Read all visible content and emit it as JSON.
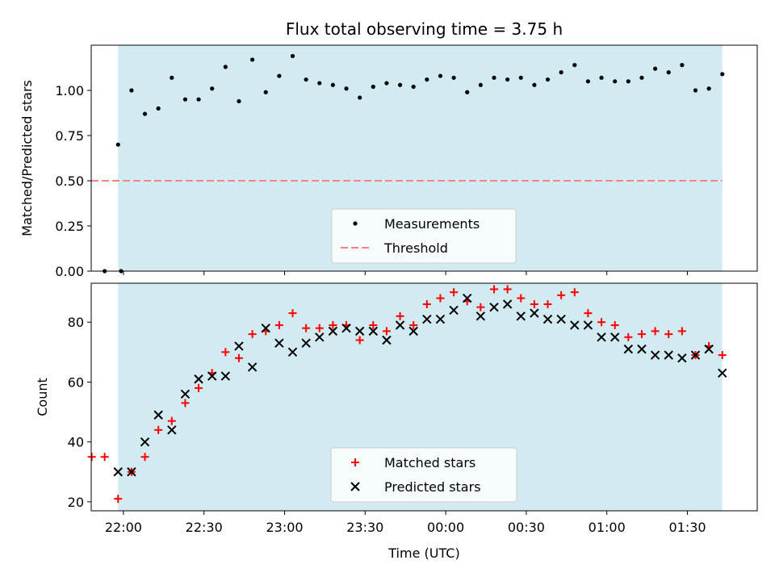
{
  "colors": {
    "band": "#add8e6",
    "threshold": "#ff8080",
    "measurement": "#000000",
    "matched": "#ff0000",
    "predicted": "#000000"
  },
  "chart_data": [
    {
      "type": "scatter",
      "title": "Flux total observing time = 3.75 h",
      "ylabel": "Matched/Predicted stars",
      "xlabel": "",
      "xlim": [
        "21:48",
        "01:56"
      ],
      "ylim": [
        0,
        1.25
      ],
      "yticks": [
        "0.00",
        "0.25",
        "0.50",
        "0.75",
        "1.00"
      ],
      "shaded_interval": [
        "21:58",
        "01:43"
      ],
      "legend": {
        "placement": "lower-center",
        "entries": [
          "Measurements",
          "Threshold"
        ]
      },
      "threshold": {
        "name": "Threshold",
        "y": 0.5,
        "x": [
          "21:48",
          "01:43"
        ]
      },
      "series": [
        {
          "name": "Measurements",
          "x": [
            "21:53",
            "21:58",
            "22:03",
            "22:08",
            "22:13",
            "22:18",
            "22:23",
            "22:28",
            "22:33",
            "22:38",
            "22:43",
            "22:48",
            "22:53",
            "22:58",
            "23:03",
            "23:08",
            "23:13",
            "23:18",
            "23:23",
            "23:28",
            "23:33",
            "23:38",
            "23:43",
            "23:48",
            "23:53",
            "23:58",
            "00:03",
            "00:08",
            "00:13",
            "00:18",
            "00:23",
            "00:28",
            "00:33",
            "00:38",
            "00:43",
            "00:48",
            "00:53",
            "00:58",
            "01:03",
            "01:08",
            "01:13",
            "01:18",
            "01:23",
            "01:28",
            "01:33",
            "01:38",
            "01:43"
          ],
          "y": [
            0.0,
            0.7,
            1.0,
            0.87,
            0.9,
            1.07,
            0.95,
            0.95,
            1.01,
            1.13,
            0.94,
            1.17,
            0.99,
            1.08,
            1.19,
            1.06,
            1.04,
            1.03,
            1.01,
            0.96,
            1.02,
            1.04,
            1.03,
            1.02,
            1.06,
            1.08,
            1.07,
            0.99,
            1.03,
            1.07,
            1.06,
            1.07,
            1.03,
            1.06,
            1.1,
            1.14,
            1.05,
            1.07,
            1.05,
            1.05,
            1.07,
            1.12,
            1.1,
            1.14,
            1.0,
            1.01,
            1.09
          ]
        }
      ]
    },
    {
      "type": "scatter",
      "title": "",
      "ylabel": "Count",
      "xlabel": "Time (UTC)",
      "xlim": [
        "21:48",
        "01:56"
      ],
      "ylim": [
        17,
        93
      ],
      "yticks": [
        "20",
        "40",
        "60",
        "80"
      ],
      "xticks": [
        "22:00",
        "22:30",
        "23:00",
        "23:30",
        "00:00",
        "00:30",
        "01:00",
        "01:30"
      ],
      "shaded_interval": [
        "21:58",
        "01:43"
      ],
      "legend": {
        "placement": "lower-center",
        "entries": [
          "Matched stars",
          "Predicted stars"
        ]
      },
      "series": [
        {
          "name": "Matched stars",
          "x": [
            "21:53",
            "21:58",
            "22:03",
            "22:08",
            "22:13",
            "22:18",
            "22:23",
            "22:28",
            "22:33",
            "22:38",
            "22:43",
            "22:48",
            "22:53",
            "22:58",
            "23:03",
            "23:08",
            "23:13",
            "23:18",
            "23:23",
            "23:28",
            "23:33",
            "23:38",
            "23:43",
            "23:48",
            "23:53",
            "23:58",
            "00:03",
            "00:08",
            "00:13",
            "00:18",
            "00:23",
            "00:28",
            "00:33",
            "00:38",
            "00:43",
            "00:48",
            "00:53",
            "00:58",
            "01:03",
            "01:08",
            "01:13",
            "01:18",
            "01:23",
            "01:28",
            "01:33",
            "01:38",
            "01:43"
          ],
          "y": [
            35,
            21,
            30,
            35,
            44,
            47,
            53,
            58,
            63,
            70,
            68,
            76,
            77,
            79,
            83,
            78,
            78,
            79,
            79,
            74,
            79,
            77,
            82,
            79,
            86,
            88,
            90,
            87,
            85,
            91,
            91,
            88,
            86,
            86,
            89,
            90,
            83,
            80,
            79,
            75,
            76,
            77,
            76,
            77,
            69,
            72,
            69
          ]
        },
        {
          "name": "Predicted stars",
          "x": [
            "21:58",
            "22:03",
            "22:08",
            "22:13",
            "22:18",
            "22:23",
            "22:28",
            "22:33",
            "22:38",
            "22:43",
            "22:48",
            "22:53",
            "22:58",
            "23:03",
            "23:08",
            "23:13",
            "23:18",
            "23:23",
            "23:28",
            "23:33",
            "23:38",
            "23:43",
            "23:48",
            "23:53",
            "23:58",
            "00:03",
            "00:08",
            "00:13",
            "00:18",
            "00:23",
            "00:28",
            "00:33",
            "00:38",
            "00:43",
            "00:48",
            "00:53",
            "00:58",
            "01:03",
            "01:08",
            "01:13",
            "01:18",
            "01:23",
            "01:28",
            "01:33",
            "01:38",
            "01:43"
          ],
          "y": [
            30,
            30,
            40,
            49,
            44,
            56,
            61,
            62,
            62,
            72,
            65,
            78,
            73,
            70,
            73,
            75,
            77,
            78,
            77,
            77,
            74,
            79,
            77,
            81,
            81,
            84,
            88,
            82,
            85,
            86,
            82,
            83,
            81,
            81,
            79,
            79,
            75,
            75,
            71,
            71,
            69,
            69,
            68,
            69,
            71,
            63
          ]
        }
      ]
    }
  ]
}
